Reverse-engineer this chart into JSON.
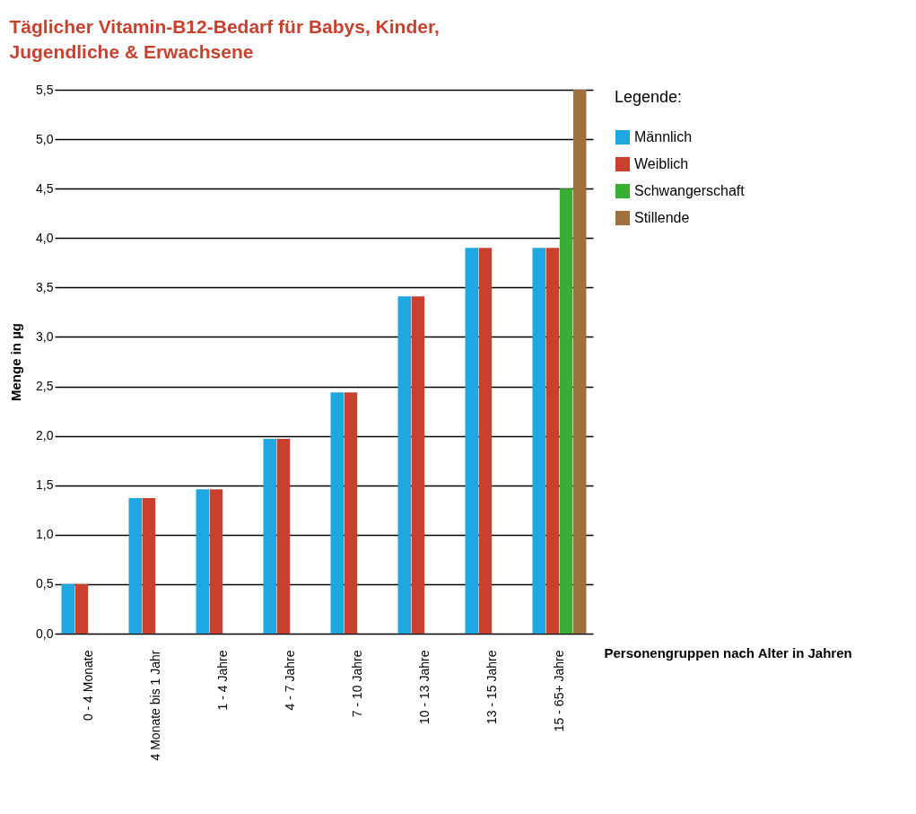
{
  "chart_data": {
    "type": "bar",
    "title": "Täglicher Vitamin-B12-Bedarf für Babys, Kinder, Jugendliche & Erwachsene",
    "xlabel": "Personengruppen nach Alter in Jahren",
    "ylabel": "Menge in µg",
    "legend_title": "Legende:",
    "categories": [
      "0 - 4 Monate",
      "4 Monate bis 1 Jahr",
      "1 - 4 Jahre",
      "4 - 7 Jahre",
      "7 - 10 Jahre",
      "10 - 13 Jahre",
      "13 - 15 Jahre",
      "15 - 65+ Jahre"
    ],
    "series": [
      {
        "name": "Männlich",
        "color": "#1ea7e1",
        "values": [
          0.5,
          1.37,
          1.46,
          1.97,
          2.44,
          3.41,
          3.9,
          3.9
        ]
      },
      {
        "name": "Weiblich",
        "color": "#c9402f",
        "values": [
          0.5,
          1.37,
          1.46,
          1.97,
          2.44,
          3.41,
          3.9,
          3.9
        ]
      },
      {
        "name": "Schwangerschaft",
        "color": "#38ae34",
        "values": [
          null,
          null,
          null,
          null,
          null,
          null,
          null,
          4.5
        ]
      },
      {
        "name": "Stillende",
        "color": "#a0703f",
        "values": [
          null,
          null,
          null,
          null,
          null,
          null,
          null,
          5.5
        ]
      }
    ],
    "ylim": [
      0,
      5.5
    ],
    "yticks": [
      {
        "value": 0,
        "label": "0,0"
      },
      {
        "value": 0.5,
        "label": "0,5"
      },
      {
        "value": 1,
        "label": "1,0"
      },
      {
        "value": 1.5,
        "label": "1,5"
      },
      {
        "value": 2,
        "label": "2,0"
      },
      {
        "value": 2.5,
        "label": "2,5"
      },
      {
        "value": 3,
        "label": "3,0"
      },
      {
        "value": 3.5,
        "label": "3,5"
      },
      {
        "value": 4,
        "label": "4,0"
      },
      {
        "value": 4.5,
        "label": "4,5"
      },
      {
        "value": 5,
        "label": "5,0"
      },
      {
        "value": 5.5,
        "label": "5,5"
      }
    ],
    "grid": "y",
    "legend": "right"
  }
}
